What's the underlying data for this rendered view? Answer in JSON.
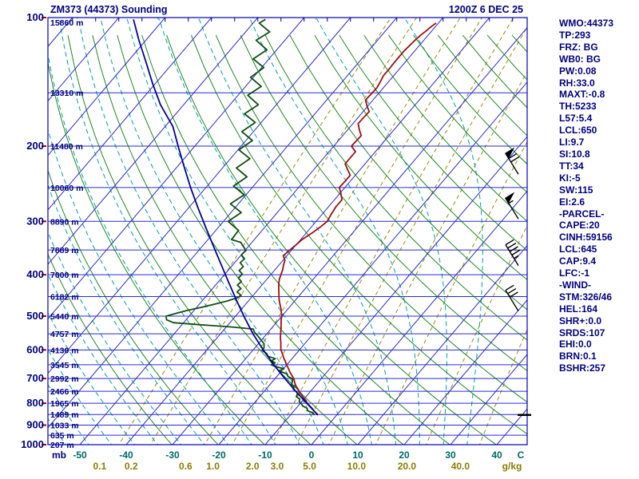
{
  "header": {
    "title": "ZM373 (44373) Sounding",
    "datetime": "1200Z 6 DEC 25"
  },
  "units": {
    "pressure": "mb",
    "temperature": "C",
    "mixing_ratio": "g/kg"
  },
  "pressure_axis": {
    "labels": [
      "100",
      "200",
      "300",
      "400",
      "500",
      "600",
      "700",
      "800",
      "900",
      "1000"
    ]
  },
  "height_labels": [
    {
      "p": 100,
      "text": "15860 m"
    },
    {
      "p": 150,
      "text": "13310 m"
    },
    {
      "p": 200,
      "text": "11480 m"
    },
    {
      "p": 250,
      "text": "10060 m"
    },
    {
      "p": 300,
      "text": "8890 m"
    },
    {
      "p": 350,
      "text": "7889 m"
    },
    {
      "p": 400,
      "text": "7000 m"
    },
    {
      "p": 450,
      "text": "6182 m"
    },
    {
      "p": 500,
      "text": "5440 m"
    },
    {
      "p": 550,
      "text": "4757 m"
    },
    {
      "p": 600,
      "text": "4130 m"
    },
    {
      "p": 650,
      "text": "3545 m"
    },
    {
      "p": 700,
      "text": "2992 m"
    },
    {
      "p": 750,
      "text": "2466 m"
    },
    {
      "p": 800,
      "text": "1965 m"
    },
    {
      "p": 850,
      "text": "1489 m"
    },
    {
      "p": 900,
      "text": "1033 m"
    },
    {
      "p": 950,
      "text": "635 m"
    },
    {
      "p": 1000,
      "text": "207 m"
    }
  ],
  "temp_axis": {
    "labels": [
      "-50",
      "-40",
      "-30",
      "-20",
      "-10",
      "0",
      "10",
      "20",
      "30",
      "40"
    ]
  },
  "ratio_axis": {
    "labels": [
      "0.1",
      "0.2",
      "0.6",
      "1.0",
      "2.0",
      "3.0",
      "5.0",
      "10.0",
      "20.0",
      "40.0"
    ]
  },
  "panel": {
    "lines": [
      "WMO:44373",
      "TP:293",
      "FRZ: BG",
      "WB0: BG",
      "PW:0.08",
      "RH:33.0",
      "MAXT:-0.8",
      "TH:5233",
      "L57:5.4",
      "LCL:650",
      "LI:9.7",
      "SI:10.8",
      "TT:34",
      "KI:-5",
      "SW:115",
      "EI:2.6",
      "-PARCEL-",
      "CAPE:20",
      "CINH:59156",
      "LCL:645",
      "CAP:9.4",
      "LFC:-1",
      "-WIND-",
      "STM:326/46",
      "HEL:164",
      "SHR+:0.0",
      "SRDS:107",
      "EHI:0.0",
      "BRN:0.1",
      "BSHR:257"
    ]
  },
  "chart_data": {
    "type": "skewt_log_p",
    "pressure_range_mb": [
      100,
      1050
    ],
    "pressure_line_interval_mb": 50,
    "isotherm_interval_c": 10,
    "temp_at_1000mb_range_c": [
      -50,
      50
    ],
    "mixing_ratio_lines_gkg": [
      0.1,
      0.2,
      0.6,
      1.0,
      2.0,
      3.0,
      5.0,
      10.0,
      20.0,
      40.0
    ],
    "surface_pressure_mb": 852,
    "series": [
      {
        "name": "temperature",
        "color": "#9b1010",
        "points": [
          [
            852,
            -4.0
          ],
          [
            838,
            -5.3
          ],
          [
            824,
            -6.4
          ],
          [
            810,
            -7.6
          ],
          [
            800,
            -8.5
          ],
          [
            788,
            -9.3
          ],
          [
            776,
            -10.4
          ],
          [
            764,
            -11.3
          ],
          [
            752,
            -12.3
          ],
          [
            740,
            -13.2
          ],
          [
            728,
            -14.2
          ],
          [
            716,
            -15.0
          ],
          [
            706,
            -15.6
          ],
          [
            700,
            -16.0
          ],
          [
            688,
            -17.0
          ],
          [
            676,
            -18.0
          ],
          [
            664,
            -18.9
          ],
          [
            652,
            -19.9
          ],
          [
            640,
            -20.8
          ],
          [
            628,
            -21.8
          ],
          [
            616,
            -22.7
          ],
          [
            606,
            -23.5
          ],
          [
            600,
            -24.0
          ],
          [
            588,
            -24.7
          ],
          [
            576,
            -25.4
          ],
          [
            564,
            -26.2
          ],
          [
            552,
            -26.9
          ],
          [
            540,
            -27.6
          ],
          [
            528,
            -28.3
          ],
          [
            516,
            -29.1
          ],
          [
            508,
            -29.6
          ],
          [
            500,
            -30.0
          ],
          [
            490,
            -30.8
          ],
          [
            480,
            -31.6
          ],
          [
            470,
            -32.5
          ],
          [
            460,
            -33.4
          ],
          [
            450,
            -34.2
          ],
          [
            440,
            -35.0
          ],
          [
            430,
            -35.8
          ],
          [
            420,
            -36.6
          ],
          [
            410,
            -37.3
          ],
          [
            400,
            -37.8
          ],
          [
            390,
            -38.3
          ],
          [
            380,
            -39.0
          ],
          [
            370,
            -39.6
          ],
          [
            361,
            -40.8
          ],
          [
            350,
            -40.4
          ],
          [
            340,
            -40.0
          ],
          [
            331,
            -39.7
          ],
          [
            320,
            -38.8
          ],
          [
            310,
            -38.1
          ],
          [
            300,
            -37.6
          ],
          [
            290,
            -38.0
          ],
          [
            278,
            -38.4
          ],
          [
            267,
            -38.4
          ],
          [
            258,
            -39.8
          ],
          [
            250,
            -41.2
          ],
          [
            242,
            -41.1
          ],
          [
            234,
            -41.1
          ],
          [
            227,
            -42.7
          ],
          [
            220,
            -44.3
          ],
          [
            213,
            -44.3
          ],
          [
            206,
            -44.3
          ],
          [
            200,
            -46.2
          ],
          [
            194,
            -46.1
          ],
          [
            189,
            -46.0
          ],
          [
            183,
            -47.5
          ],
          [
            177,
            -48.9
          ],
          [
            171,
            -48.8
          ],
          [
            166,
            -48.7
          ],
          [
            161,
            -50.2
          ],
          [
            156,
            -51.6
          ],
          [
            151,
            -51.5
          ],
          [
            146,
            -51.4
          ],
          [
            141,
            -51.8
          ],
          [
            137,
            -52.2
          ],
          [
            132,
            -52.2
          ],
          [
            128,
            -52.3
          ],
          [
            124,
            -52.3
          ],
          [
            120,
            -52.3
          ],
          [
            116,
            -52.1
          ],
          [
            113,
            -51.9
          ],
          [
            110,
            -51.6
          ],
          [
            108,
            -51.3
          ],
          [
            105,
            -50.9
          ],
          [
            103,
            -50.5
          ]
        ]
      },
      {
        "name": "dewpoint",
        "color": "#114d11",
        "points": [
          [
            852,
            -4.8
          ],
          [
            842,
            -5.6
          ],
          [
            832,
            -7.2
          ],
          [
            822,
            -7.6
          ],
          [
            812,
            -9.0
          ],
          [
            802,
            -9.7
          ],
          [
            792,
            -10.6
          ],
          [
            782,
            -10.9
          ],
          [
            772,
            -12.1
          ],
          [
            762,
            -12.3
          ],
          [
            752,
            -12.9
          ],
          [
            742,
            -14.1
          ],
          [
            732,
            -14.4
          ],
          [
            722,
            -15.4
          ],
          [
            712,
            -15.7
          ],
          [
            702,
            -16.1
          ],
          [
            692,
            -17.6
          ],
          [
            682,
            -18.4
          ],
          [
            672,
            -20.6
          ],
          [
            664,
            -19.9
          ],
          [
            656,
            -22.2
          ],
          [
            650,
            -23.4
          ],
          [
            643,
            -22.9
          ],
          [
            636,
            -24.1
          ],
          [
            629,
            -23.6
          ],
          [
            621,
            -25.6
          ],
          [
            612,
            -26.4
          ],
          [
            602,
            -27.9
          ],
          [
            592,
            -28.1
          ],
          [
            580,
            -28.8
          ],
          [
            568,
            -30.2
          ],
          [
            556,
            -31.6
          ],
          [
            545,
            -33.0
          ],
          [
            536,
            -33.8
          ],
          [
            530,
            -39.0
          ],
          [
            524,
            -46.0
          ],
          [
            518,
            -52.2
          ],
          [
            510,
            -54.2
          ],
          [
            500,
            -55.0
          ],
          [
            492,
            -53.2
          ],
          [
            485,
            -51.5
          ],
          [
            477,
            -49.0
          ],
          [
            469,
            -46.8
          ],
          [
            461,
            -44.6
          ],
          [
            453,
            -43.0
          ],
          [
            447,
            -42.6
          ],
          [
            439,
            -44.1
          ],
          [
            431,
            -43.9
          ],
          [
            423,
            -45.3
          ],
          [
            415,
            -45.1
          ],
          [
            407,
            -46.4
          ],
          [
            399,
            -46.2
          ],
          [
            391,
            -47.6
          ],
          [
            383,
            -47.4
          ],
          [
            375,
            -48.8
          ],
          [
            367,
            -48.6
          ],
          [
            359,
            -50.0
          ],
          [
            351,
            -49.8
          ],
          [
            343,
            -51.2
          ],
          [
            336,
            -52.4
          ],
          [
            331,
            -54.9
          ],
          [
            315,
            -55.1
          ],
          [
            300,
            -59.0
          ],
          [
            286,
            -57.8
          ],
          [
            273,
            -61.7
          ],
          [
            260,
            -60.4
          ],
          [
            248,
            -64.3
          ],
          [
            236,
            -63.1
          ],
          [
            225,
            -67.0
          ],
          [
            214,
            -65.8
          ],
          [
            204,
            -69.8
          ],
          [
            194,
            -68.6
          ],
          [
            185,
            -72.5
          ],
          [
            176,
            -71.3
          ],
          [
            168,
            -75.2
          ],
          [
            160,
            -73.9
          ],
          [
            152,
            -77.9
          ],
          [
            145,
            -76.6
          ],
          [
            138,
            -80.6
          ],
          [
            131,
            -79.5
          ],
          [
            125,
            -83.4
          ],
          [
            119,
            -82.1
          ],
          [
            113,
            -86.2
          ],
          [
            108,
            -84.8
          ],
          [
            103,
            -88.7
          ],
          [
            101,
            -88.0
          ]
        ]
      },
      {
        "name": "parcel",
        "color": "#000099",
        "points": [
          [
            852,
            -4.1
          ],
          [
            800,
            -8.6
          ],
          [
            750,
            -13.2
          ],
          [
            700,
            -17.9
          ],
          [
            650,
            -22.8
          ],
          [
            600,
            -27.8
          ],
          [
            550,
            -33.0
          ],
          [
            500,
            -38.2
          ],
          [
            460,
            -42.6
          ],
          [
            420,
            -47.3
          ],
          [
            380,
            -52.4
          ],
          [
            345,
            -57.3
          ],
          [
            310,
            -62.7
          ],
          [
            280,
            -67.8
          ],
          [
            250,
            -73.3
          ],
          [
            225,
            -78.2
          ],
          [
            200,
            -83.6
          ],
          [
            180,
            -88.3
          ],
          [
            160,
            -95.0
          ],
          [
            143,
            -100.5
          ],
          [
            127,
            -106.0
          ],
          [
            113,
            -111.5
          ],
          [
            101,
            -116.5
          ]
        ]
      }
    ],
    "wind_barbs": [
      {
        "p": 220,
        "speed_kt": 70
      },
      {
        "p": 280,
        "speed_kt": 55
      },
      {
        "p": 360,
        "speed_kt": 45
      },
      {
        "p": 460,
        "speed_kt": 30
      }
    ]
  },
  "colors": {
    "text": "#000080",
    "frame": "#0000bb",
    "grid_blue": "#2a2ad0",
    "dry_adiabat": "#1f8a1f",
    "moist_adiabat": "#00a0a8",
    "mixing_ratio": "#968c00",
    "temp_label": "#006868",
    "ratio_label": "#8a7d00",
    "tick_red": "#aa0000",
    "barb": "#000000"
  }
}
